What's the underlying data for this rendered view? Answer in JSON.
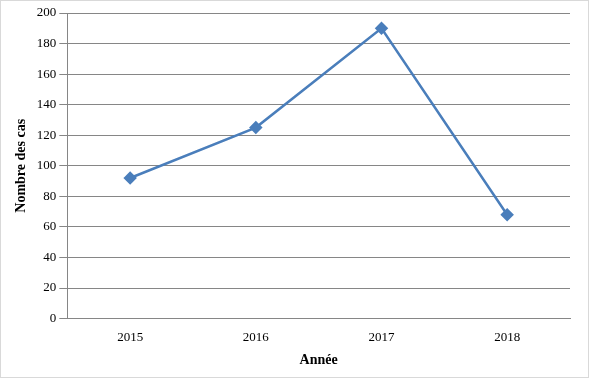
{
  "chart_data": {
    "type": "line",
    "x_label": "Année",
    "y_label": "Nombre des cas",
    "categories": [
      "2015",
      "2016",
      "2017",
      "2018"
    ],
    "values": [
      92,
      125,
      190,
      68
    ],
    "color": "#4a7ebb",
    "marker": "diamond",
    "ylim": [
      0,
      200
    ],
    "yticks": [
      0,
      20,
      40,
      60,
      80,
      100,
      120,
      140,
      160,
      180,
      200
    ],
    "grid": true
  }
}
